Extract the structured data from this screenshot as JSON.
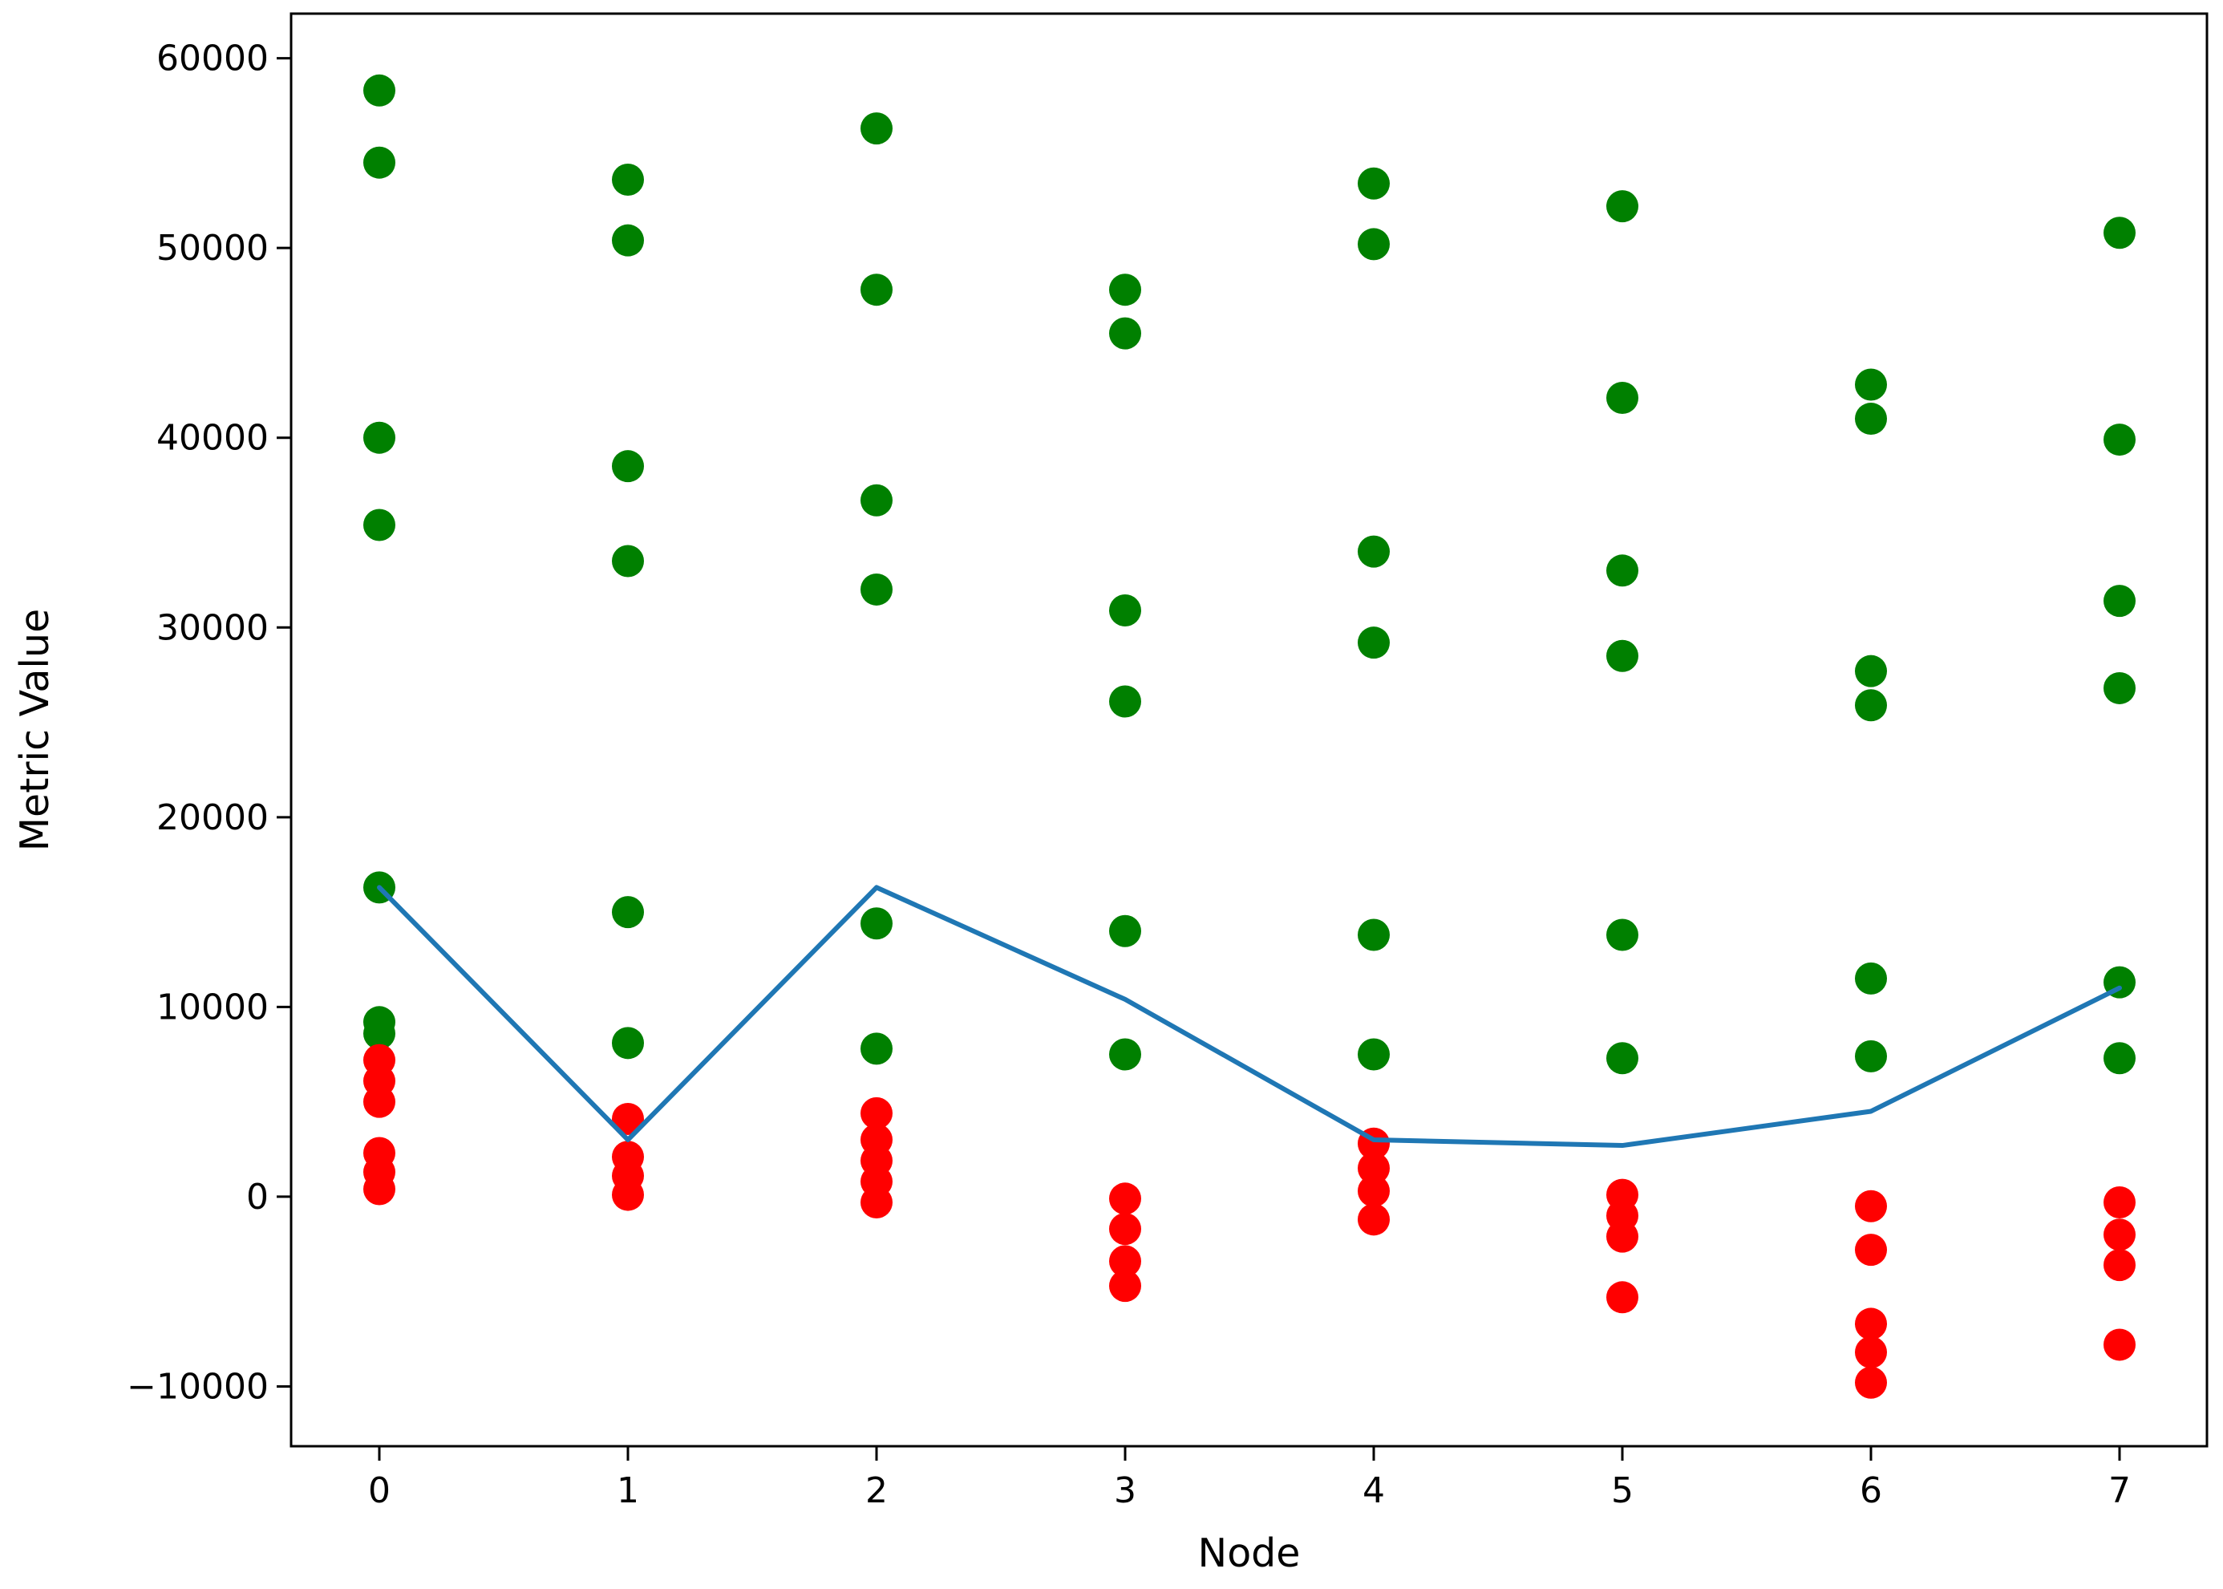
{
  "figure": {
    "background": "#ffffff",
    "frame_color": "#000000"
  },
  "chart_data": {
    "type": "scatter",
    "title": "",
    "xlabel": "Node",
    "ylabel": "Metric Value",
    "x_tick_labels": [
      "0",
      "1",
      "2",
      "3",
      "4",
      "5",
      "6",
      "7"
    ],
    "y_tick_values": [
      60000,
      50000,
      40000,
      30000,
      20000,
      10000,
      0,
      -10000
    ],
    "y_tick_labels": [
      "60000",
      "50000",
      "40000",
      "30000",
      "20000",
      "10000",
      "0",
      "−10000"
    ],
    "xlim": [
      -0.35,
      7.35
    ],
    "ylim": [
      -13150,
      62350
    ],
    "grid": false,
    "legend": false,
    "series": [
      {
        "name": "green-scatter",
        "type": "scatter",
        "color": "#008000",
        "marker_radius": 20,
        "points": [
          {
            "x": 0,
            "y": 58300
          },
          {
            "x": 0,
            "y": 54500
          },
          {
            "x": 0,
            "y": 40000
          },
          {
            "x": 0,
            "y": 35400
          },
          {
            "x": 0,
            "y": 16300
          },
          {
            "x": 0,
            "y": 9200
          },
          {
            "x": 0,
            "y": 8600
          },
          {
            "x": 1,
            "y": 53600
          },
          {
            "x": 1,
            "y": 50400
          },
          {
            "x": 1,
            "y": 38500
          },
          {
            "x": 1,
            "y": 33500
          },
          {
            "x": 1,
            "y": 15000
          },
          {
            "x": 1,
            "y": 8100
          },
          {
            "x": 2,
            "y": 56300
          },
          {
            "x": 2,
            "y": 47800
          },
          {
            "x": 2,
            "y": 36700
          },
          {
            "x": 2,
            "y": 32000
          },
          {
            "x": 2,
            "y": 14400
          },
          {
            "x": 2,
            "y": 7800
          },
          {
            "x": 3,
            "y": 47800
          },
          {
            "x": 3,
            "y": 45500
          },
          {
            "x": 3,
            "y": 30900
          },
          {
            "x": 3,
            "y": 26100
          },
          {
            "x": 3,
            "y": 14000
          },
          {
            "x": 3,
            "y": 7500
          },
          {
            "x": 4,
            "y": 53400
          },
          {
            "x": 4,
            "y": 50200
          },
          {
            "x": 4,
            "y": 34000
          },
          {
            "x": 4,
            "y": 29200
          },
          {
            "x": 4,
            "y": 13800
          },
          {
            "x": 4,
            "y": 7500
          },
          {
            "x": 5,
            "y": 52200
          },
          {
            "x": 5,
            "y": 42100
          },
          {
            "x": 5,
            "y": 33000
          },
          {
            "x": 5,
            "y": 28500
          },
          {
            "x": 5,
            "y": 13800
          },
          {
            "x": 5,
            "y": 7300
          },
          {
            "x": 6,
            "y": 42800
          },
          {
            "x": 6,
            "y": 41000
          },
          {
            "x": 6,
            "y": 27700
          },
          {
            "x": 6,
            "y": 25900
          },
          {
            "x": 6,
            "y": 11500
          },
          {
            "x": 6,
            "y": 7400
          },
          {
            "x": 7,
            "y": 50800
          },
          {
            "x": 7,
            "y": 39900
          },
          {
            "x": 7,
            "y": 31400
          },
          {
            "x": 7,
            "y": 26800
          },
          {
            "x": 7,
            "y": 11300
          },
          {
            "x": 7,
            "y": 7300
          }
        ]
      },
      {
        "name": "red-scatter",
        "type": "scatter",
        "color": "#ff0000",
        "marker_radius": 20,
        "points": [
          {
            "x": 0,
            "y": 7200
          },
          {
            "x": 0,
            "y": 6100
          },
          {
            "x": 0,
            "y": 5000
          },
          {
            "x": 0,
            "y": 2300
          },
          {
            "x": 0,
            "y": 1300
          },
          {
            "x": 0,
            "y": 400
          },
          {
            "x": 1,
            "y": 4100
          },
          {
            "x": 1,
            "y": 2100
          },
          {
            "x": 1,
            "y": 1100
          },
          {
            "x": 1,
            "y": 100
          },
          {
            "x": 2,
            "y": 4400
          },
          {
            "x": 2,
            "y": 3000
          },
          {
            "x": 2,
            "y": 1900
          },
          {
            "x": 2,
            "y": 800
          },
          {
            "x": 2,
            "y": -300
          },
          {
            "x": 3,
            "y": -100
          },
          {
            "x": 3,
            "y": -1700
          },
          {
            "x": 3,
            "y": -3400
          },
          {
            "x": 3,
            "y": -4700
          },
          {
            "x": 4,
            "y": 2800
          },
          {
            "x": 4,
            "y": 1500
          },
          {
            "x": 4,
            "y": 300
          },
          {
            "x": 4,
            "y": -1200
          },
          {
            "x": 5,
            "y": 100
          },
          {
            "x": 5,
            "y": -1000
          },
          {
            "x": 5,
            "y": -2100
          },
          {
            "x": 5,
            "y": -5300
          },
          {
            "x": 6,
            "y": -500
          },
          {
            "x": 6,
            "y": -2800
          },
          {
            "x": 6,
            "y": -6700
          },
          {
            "x": 6,
            "y": -8200
          },
          {
            "x": 6,
            "y": -9800
          },
          {
            "x": 7,
            "y": -300
          },
          {
            "x": 7,
            "y": -2000
          },
          {
            "x": 7,
            "y": -3600
          },
          {
            "x": 7,
            "y": -7800
          }
        ]
      },
      {
        "name": "blue-trend-line",
        "type": "line",
        "color": "#1f77b4",
        "line_width": 6,
        "x": [
          0,
          1,
          2,
          3,
          4,
          5,
          6,
          7
        ],
        "values": [
          16300,
          3000,
          16300,
          10400,
          3000,
          2700,
          4500,
          11000
        ]
      }
    ]
  }
}
